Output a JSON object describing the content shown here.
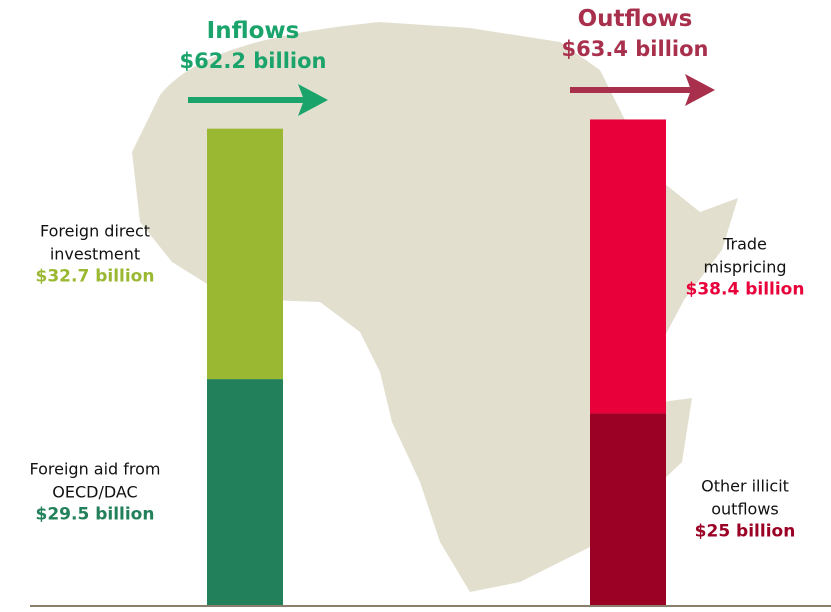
{
  "chart_data": {
    "type": "stacked-bar",
    "ylim": [
      0,
      79
    ],
    "bars": [
      {
        "name": "Inflows",
        "total": 62.2,
        "total_label": "$62.2 billion",
        "color": "#1aa36a",
        "segments": [
          {
            "name": "Foreign aid from OECD/DAC",
            "value": 29.5,
            "value_label": "$29.5 billion",
            "color": "#22805a"
          },
          {
            "name": "Foreign direct investment",
            "value": 32.7,
            "value_label": "$32.7 billion",
            "color": "#9ab832"
          }
        ]
      },
      {
        "name": "Outflows",
        "total": 63.4,
        "total_label": "$63.4 billion",
        "color": "#a8304d",
        "segments": [
          {
            "name": "Other illicit outflows",
            "value": 25,
            "value_label": "$25 billion",
            "color": "#9b0025"
          },
          {
            "name": "Trade mispricing",
            "value": 38.4,
            "value_label": "$38.4 billion",
            "color": "#e8003a"
          }
        ]
      }
    ]
  }
}
